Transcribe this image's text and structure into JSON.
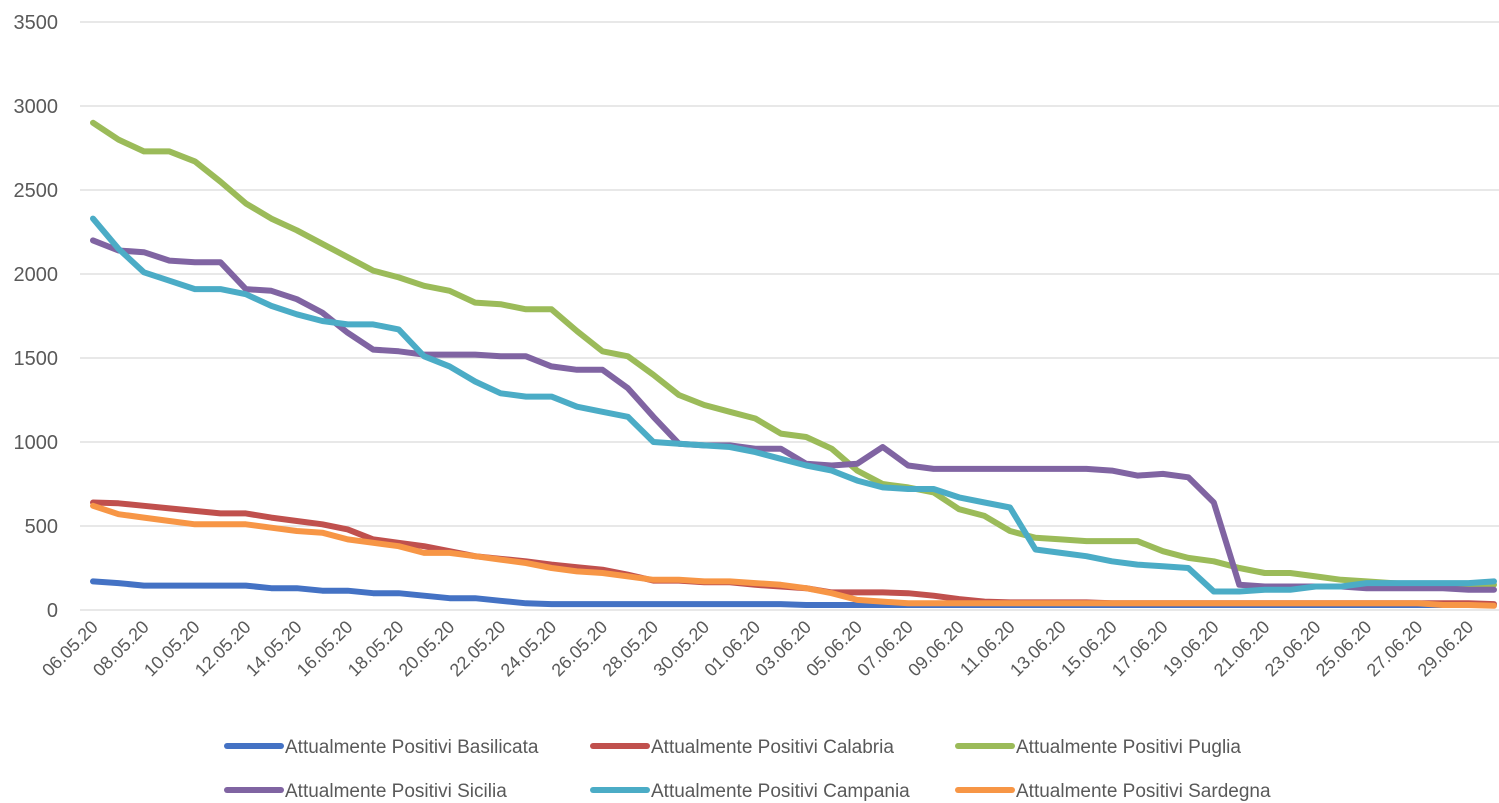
{
  "chart_data": {
    "type": "line",
    "title": "",
    "xlabel": "",
    "ylabel": "",
    "ylim": [
      0,
      3500
    ],
    "yticks": [
      0,
      500,
      1000,
      1500,
      2000,
      2500,
      3000,
      3500
    ],
    "grid": "horizontal",
    "legend_position": "bottom",
    "x": [
      "06.05.20",
      "07.05.20",
      "08.05.20",
      "09.05.20",
      "10.05.20",
      "11.05.20",
      "12.05.20",
      "13.05.20",
      "14.05.20",
      "15.05.20",
      "16.05.20",
      "17.05.20",
      "18.05.20",
      "19.05.20",
      "20.05.20",
      "21.05.20",
      "22.05.20",
      "23.05.20",
      "24.05.20",
      "25.05.20",
      "26.05.20",
      "27.05.20",
      "28.05.20",
      "29.05.20",
      "30.05.20",
      "31.05.20",
      "01.06.20",
      "02.06.20",
      "03.06.20",
      "04.06.20",
      "05.06.20",
      "06.06.20",
      "07.06.20",
      "08.06.20",
      "09.06.20",
      "10.06.20",
      "11.06.20",
      "12.06.20",
      "13.06.20",
      "14.06.20",
      "15.06.20",
      "16.06.20",
      "17.06.20",
      "18.06.20",
      "19.06.20",
      "20.06.20",
      "21.06.20",
      "22.06.20",
      "23.06.20",
      "24.06.20",
      "25.06.20",
      "26.06.20",
      "27.06.20",
      "28.06.20",
      "29.06.20",
      "30.06.20"
    ],
    "x_tick_labels": [
      "06.05.20",
      "08.05.20",
      "10.05.20",
      "12.05.20",
      "14.05.20",
      "16.05.20",
      "18.05.20",
      "20.05.20",
      "22.05.20",
      "24.05.20",
      "26.05.20",
      "28.05.20",
      "30.05.20",
      "01.06.20",
      "03.06.20",
      "05.06.20",
      "07.06.20",
      "09.06.20",
      "11.06.20",
      "13.06.20",
      "15.06.20",
      "17.06.20",
      "19.06.20",
      "21.06.20",
      "23.06.20",
      "25.06.20",
      "27.06.20",
      "29.06.20"
    ],
    "series": [
      {
        "name": "Attualmente Positivi  Basilicata",
        "color": "#4472C4",
        "values": [
          170,
          160,
          145,
          145,
          145,
          145,
          145,
          130,
          130,
          115,
          115,
          100,
          100,
          85,
          70,
          70,
          55,
          40,
          35,
          35,
          35,
          35,
          35,
          35,
          35,
          35,
          35,
          35,
          30,
          30,
          30,
          30,
          30,
          30,
          30,
          30,
          30,
          30,
          30,
          30,
          30,
          30,
          30,
          30,
          30,
          30,
          30,
          30,
          30,
          30,
          30,
          30,
          30,
          30,
          30,
          30
        ]
      },
      {
        "name": "Attualmente Positivi  Calabria",
        "color": "#C0504D",
        "values": [
          640,
          635,
          620,
          605,
          590,
          575,
          575,
          550,
          530,
          510,
          480,
          420,
          400,
          380,
          350,
          320,
          305,
          290,
          270,
          255,
          240,
          210,
          175,
          175,
          165,
          165,
          150,
          140,
          130,
          105,
          105,
          105,
          100,
          85,
          65,
          50,
          45,
          45,
          45,
          45,
          40,
          40,
          40,
          40,
          40,
          40,
          40,
          40,
          40,
          40,
          40,
          40,
          40,
          40,
          40,
          35
        ]
      },
      {
        "name": "Attualmente Positivi  Puglia",
        "color": "#9BBB59",
        "values": [
          2900,
          2800,
          2730,
          2730,
          2670,
          2550,
          2420,
          2330,
          2260,
          2180,
          2100,
          2020,
          1980,
          1930,
          1900,
          1830,
          1820,
          1790,
          1790,
          1660,
          1540,
          1510,
          1400,
          1280,
          1220,
          1180,
          1140,
          1050,
          1030,
          960,
          830,
          750,
          730,
          700,
          600,
          560,
          470,
          430,
          420,
          410,
          410,
          410,
          350,
          310,
          290,
          250,
          220,
          220,
          200,
          180,
          170,
          160,
          150,
          150,
          150,
          150
        ]
      },
      {
        "name": "Attualmente Positivi  Sicilia",
        "color": "#8064A2",
        "values": [
          2200,
          2140,
          2130,
          2080,
          2070,
          2070,
          1910,
          1900,
          1850,
          1770,
          1650,
          1550,
          1540,
          1520,
          1520,
          1520,
          1510,
          1510,
          1450,
          1430,
          1430,
          1320,
          1150,
          990,
          980,
          980,
          960,
          960,
          870,
          860,
          870,
          970,
          860,
          840,
          840,
          840,
          840,
          840,
          840,
          840,
          830,
          800,
          810,
          790,
          640,
          150,
          140,
          140,
          140,
          140,
          130,
          130,
          130,
          130,
          120,
          120
        ]
      },
      {
        "name": "Attualmente Positivi  Campania",
        "color": "#4BACC6",
        "values": [
          2330,
          2150,
          2010,
          1960,
          1910,
          1910,
          1880,
          1810,
          1760,
          1720,
          1700,
          1700,
          1670,
          1510,
          1450,
          1360,
          1290,
          1270,
          1270,
          1210,
          1180,
          1150,
          1000,
          990,
          980,
          970,
          940,
          900,
          860,
          830,
          770,
          730,
          720,
          720,
          670,
          640,
          610,
          360,
          340,
          320,
          290,
          270,
          260,
          250,
          110,
          110,
          120,
          120,
          140,
          140,
          160,
          160,
          160,
          160,
          160,
          170
        ]
      },
      {
        "name": "Attualmente Positivi  Sardegna",
        "color": "#F79646",
        "values": [
          620,
          570,
          550,
          530,
          510,
          510,
          510,
          490,
          470,
          460,
          420,
          400,
          380,
          340,
          340,
          320,
          300,
          280,
          250,
          230,
          220,
          200,
          180,
          180,
          170,
          170,
          160,
          150,
          130,
          100,
          60,
          50,
          40,
          40,
          40,
          40,
          40,
          40,
          40,
          40,
          40,
          40,
          40,
          40,
          40,
          40,
          40,
          40,
          40,
          40,
          40,
          40,
          40,
          30,
          30,
          25
        ]
      }
    ]
  }
}
